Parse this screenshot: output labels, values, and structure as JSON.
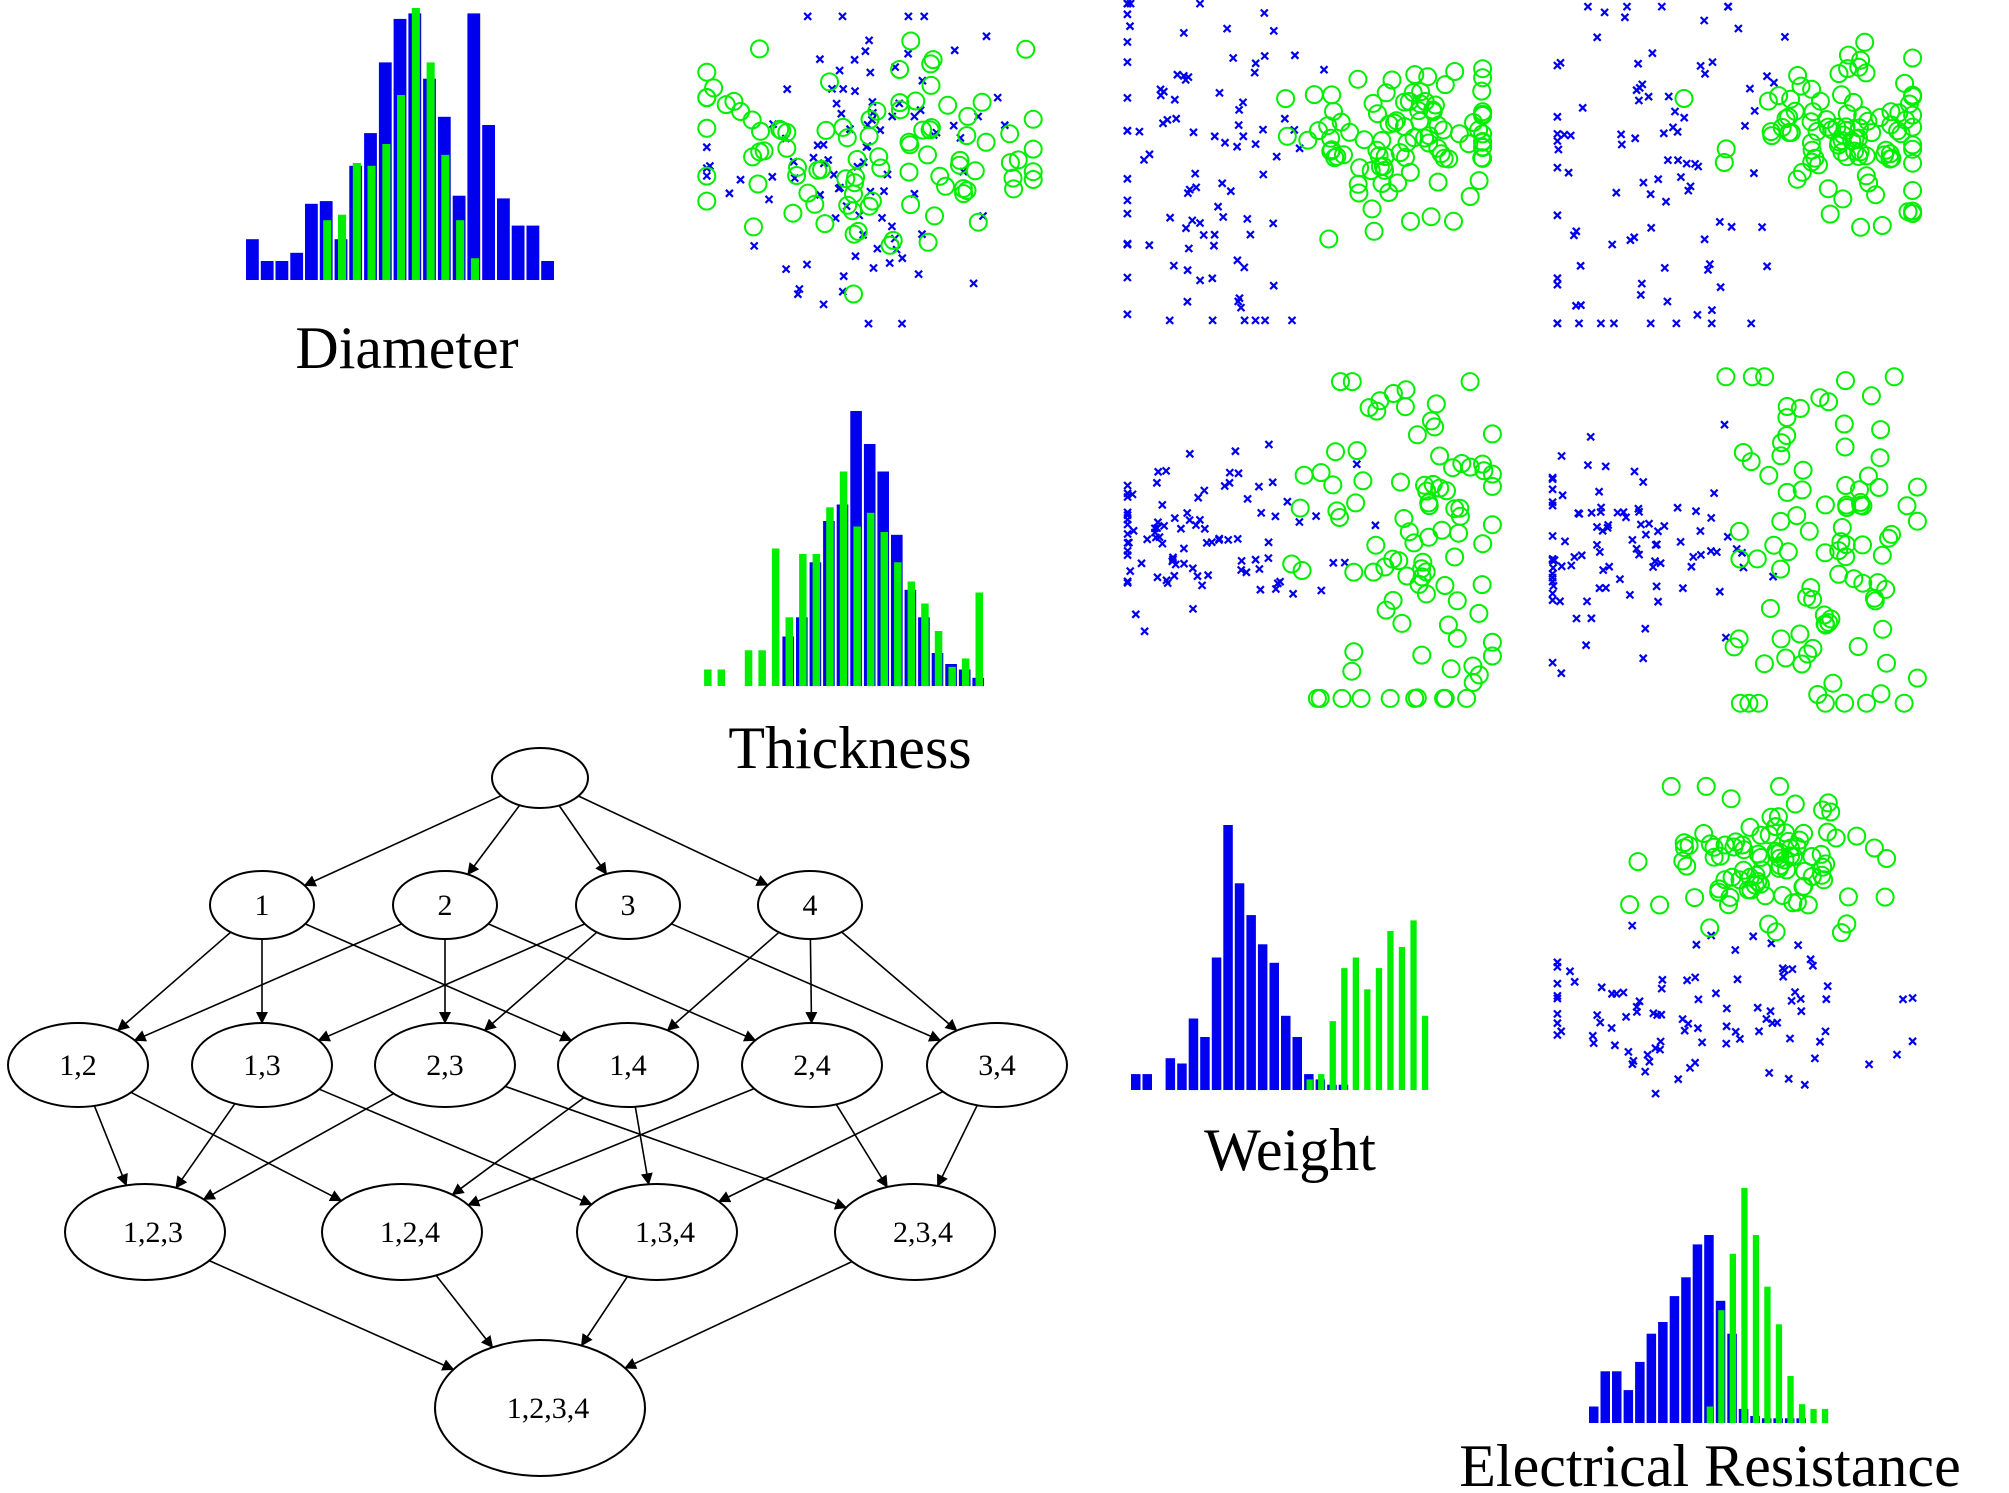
{
  "colors": {
    "class_a": "#0000ee",
    "class_b": "#00ee00",
    "edge": "#000000",
    "node_stroke": "#000000",
    "background": "#ffffff"
  },
  "class_markers": {
    "class_a": "cross",
    "class_b": "circle"
  },
  "variables": [
    {
      "label": "Diameter"
    },
    {
      "label": "Thickness"
    },
    {
      "label": "Weight"
    },
    {
      "label": "Electrical Resistance"
    }
  ],
  "scatter_pairs": [
    {
      "x_var": "Diameter",
      "y_var": "Thickness"
    },
    {
      "x_var": "Diameter",
      "y_var": "Weight"
    },
    {
      "x_var": "Diameter",
      "y_var": "Electrical Resistance"
    },
    {
      "x_var": "Thickness",
      "y_var": "Weight"
    },
    {
      "x_var": "Thickness",
      "y_var": "Electrical Resistance"
    },
    {
      "x_var": "Weight",
      "y_var": "Electrical Resistance"
    }
  ],
  "chart_data": [
    {
      "type": "bar",
      "variable": "Diameter",
      "title": "",
      "series": [
        {
          "class": "class_a",
          "values": [
            0.15,
            0.07,
            0.07,
            0.1,
            0.28,
            0.29,
            0.15,
            0.42,
            0.54,
            0.8,
            0.96,
            0.98,
            0.74,
            0.6,
            0.31,
            0.98,
            0.57,
            0.3,
            0.2,
            0.2,
            0.07
          ]
        },
        {
          "class": "class_b",
          "values": [
            0,
            0,
            0,
            0,
            0,
            0.22,
            0.24,
            0.43,
            0.42,
            0.5,
            0.68,
            1.0,
            0.8,
            0.46,
            0.22,
            0.08,
            0,
            0,
            0,
            0,
            0
          ]
        }
      ]
    },
    {
      "type": "bar",
      "variable": "Thickness",
      "title": "",
      "series": [
        {
          "class": "class_a",
          "values": [
            0,
            0,
            0,
            0,
            0,
            0,
            0.18,
            0.25,
            0.45,
            0.6,
            0.66,
            1.0,
            0.88,
            0.78,
            0.55,
            0.35,
            0.25,
            0.12,
            0.08,
            0.06,
            0.03
          ]
        },
        {
          "class": "class_b",
          "values": [
            0.06,
            0.06,
            0,
            0.13,
            0.13,
            0.5,
            0.25,
            0.48,
            0.48,
            0.65,
            0.78,
            0.58,
            0.63,
            0.56,
            0.45,
            0.38,
            0.3,
            0.2,
            0.07,
            0.1,
            0.34
          ]
        }
      ]
    },
    {
      "type": "bar",
      "variable": "Weight",
      "title": "",
      "series": [
        {
          "class": "class_a",
          "values": [
            0.06,
            0.06,
            0,
            0.12,
            0.1,
            0.27,
            0.2,
            0.5,
            1.0,
            0.78,
            0.66,
            0.55,
            0.48,
            0.28,
            0.2,
            0.06,
            0.04,
            0.02,
            0.02,
            0,
            0,
            0,
            0,
            0,
            0,
            0
          ]
        },
        {
          "class": "class_b",
          "values": [
            0,
            0,
            0,
            0,
            0,
            0,
            0,
            0,
            0,
            0,
            0,
            0,
            0,
            0,
            0,
            0.04,
            0.06,
            0.26,
            0.46,
            0.5,
            0.38,
            0.46,
            0.6,
            0.54,
            0.64,
            0.28
          ]
        }
      ]
    },
    {
      "type": "bar",
      "variable": "Electrical Resistance",
      "title": "",
      "series": [
        {
          "class": "class_a",
          "values": [
            0.07,
            0.22,
            0.22,
            0.14,
            0.26,
            0.38,
            0.43,
            0.54,
            0.62,
            0.76,
            0.8,
            0.52,
            0.38,
            0.06,
            0.03,
            0.02,
            0.02,
            0.02,
            0.02,
            0,
            0
          ]
        },
        {
          "class": "class_b",
          "values": [
            0,
            0,
            0,
            0,
            0,
            0,
            0,
            0,
            0,
            0,
            0.07,
            0.48,
            0.72,
            1.0,
            0.8,
            0.58,
            0.42,
            0.2,
            0.08,
            0.06,
            0.06
          ]
        }
      ]
    },
    {
      "type": "scatter",
      "pair": "Diameter vs Thickness",
      "series": [
        {
          "class": "class_a",
          "center": [
            -0.05,
            0.0
          ],
          "spread": [
            0.22,
            0.28
          ],
          "count": 95
        },
        {
          "class": "class_b",
          "center": [
            0.0,
            -0.05
          ],
          "spread": [
            0.28,
            0.15
          ],
          "count": 95
        }
      ]
    },
    {
      "type": "scatter",
      "pair": "Diameter vs Weight",
      "series": [
        {
          "class": "class_a",
          "center": [
            -0.28,
            0.0
          ],
          "spread": [
            0.18,
            0.3
          ],
          "count": 95
        },
        {
          "class": "class_b",
          "center": [
            0.3,
            -0.08
          ],
          "spread": [
            0.16,
            0.13
          ],
          "count": 95
        }
      ]
    },
    {
      "type": "scatter",
      "pair": "Diameter vs Electrical Resistance",
      "series": [
        {
          "class": "class_a",
          "center": [
            -0.22,
            0.05
          ],
          "spread": [
            0.2,
            0.3
          ],
          "count": 95
        },
        {
          "class": "class_b",
          "center": [
            0.3,
            -0.08
          ],
          "spread": [
            0.15,
            0.12
          ],
          "count": 95
        }
      ]
    },
    {
      "type": "scatter",
      "pair": "Thickness vs Weight",
      "series": [
        {
          "class": "class_a",
          "center": [
            -0.3,
            0.0
          ],
          "spread": [
            0.16,
            0.12
          ],
          "count": 95
        },
        {
          "class": "class_b",
          "center": [
            0.28,
            0.0
          ],
          "spread": [
            0.14,
            0.3
          ],
          "count": 95
        }
      ]
    },
    {
      "type": "scatter",
      "pair": "Thickness vs Electrical Resistance",
      "series": [
        {
          "class": "class_a",
          "center": [
            -0.28,
            0.0
          ],
          "spread": [
            0.2,
            0.14
          ],
          "count": 95
        },
        {
          "class": "class_b",
          "center": [
            0.25,
            0.0
          ],
          "spread": [
            0.14,
            0.3
          ],
          "count": 95
        }
      ]
    },
    {
      "type": "scatter",
      "pair": "Weight vs Electrical Resistance",
      "series": [
        {
          "class": "class_a",
          "center": [
            -0.1,
            0.25
          ],
          "spread": [
            0.25,
            0.12
          ],
          "count": 95
        },
        {
          "class": "class_b",
          "center": [
            0.12,
            -0.25
          ],
          "spread": [
            0.15,
            0.11
          ],
          "count": 95
        }
      ]
    }
  ],
  "lattice": {
    "nodes": [
      {
        "id": "root",
        "label": ""
      },
      {
        "id": "1",
        "label": "1"
      },
      {
        "id": "2",
        "label": "2"
      },
      {
        "id": "3",
        "label": "3"
      },
      {
        "id": "4",
        "label": "4"
      },
      {
        "id": "12",
        "label": "1,2"
      },
      {
        "id": "13",
        "label": "1,3"
      },
      {
        "id": "23",
        "label": "2,3"
      },
      {
        "id": "14",
        "label": "1,4"
      },
      {
        "id": "24",
        "label": "2,4"
      },
      {
        "id": "34",
        "label": "3,4"
      },
      {
        "id": "123",
        "label": "1,2,3"
      },
      {
        "id": "124",
        "label": "1,2,4"
      },
      {
        "id": "134",
        "label": "1,3,4"
      },
      {
        "id": "234",
        "label": "2,3,4"
      },
      {
        "id": "1234",
        "label": "1,2,3,4"
      }
    ],
    "edges": [
      [
        "root",
        "1"
      ],
      [
        "root",
        "2"
      ],
      [
        "root",
        "3"
      ],
      [
        "root",
        "4"
      ],
      [
        "1",
        "12"
      ],
      [
        "1",
        "13"
      ],
      [
        "1",
        "14"
      ],
      [
        "2",
        "12"
      ],
      [
        "2",
        "23"
      ],
      [
        "2",
        "24"
      ],
      [
        "3",
        "13"
      ],
      [
        "3",
        "23"
      ],
      [
        "3",
        "34"
      ],
      [
        "4",
        "14"
      ],
      [
        "4",
        "24"
      ],
      [
        "4",
        "34"
      ],
      [
        "12",
        "123"
      ],
      [
        "12",
        "124"
      ],
      [
        "13",
        "123"
      ],
      [
        "13",
        "134"
      ],
      [
        "23",
        "123"
      ],
      [
        "23",
        "234"
      ],
      [
        "14",
        "124"
      ],
      [
        "14",
        "134"
      ],
      [
        "24",
        "124"
      ],
      [
        "24",
        "234"
      ],
      [
        "34",
        "134"
      ],
      [
        "34",
        "234"
      ],
      [
        "123",
        "1234"
      ],
      [
        "124",
        "1234"
      ],
      [
        "134",
        "1234"
      ],
      [
        "234",
        "1234"
      ]
    ]
  }
}
